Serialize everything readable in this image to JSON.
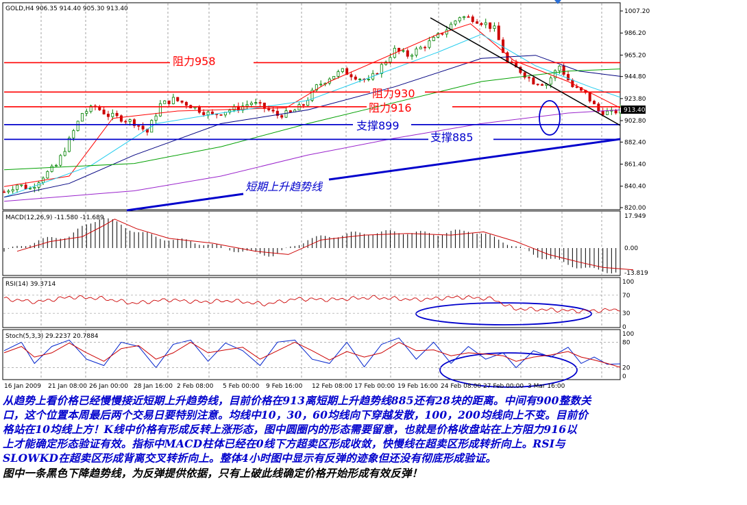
{
  "chart_data": {
    "type": "candlestick",
    "header": "GOLD,H4  906.35 914.40 905.30 913.40",
    "price_axis": {
      "ticks": [
        "1007.20",
        "986.20",
        "965.20",
        "944.80",
        "923.80",
        "902.80",
        "882.40",
        "861.40",
        "840.40",
        "820.00"
      ],
      "current": "913.40"
    },
    "x_labels": [
      "16 Jan 2009",
      "21 Jan 08:00",
      "26 Jan 00:00",
      "28 Jan 16:00",
      "2 Feb 08:00",
      "5 Feb 00:00",
      "9 Feb 16:00",
      "12 Feb 08:00",
      "17 Feb 00:00",
      "19 Feb 16:00",
      "24 Feb 08:00",
      "27 Feb 00:00",
      "3 Mar 16:00"
    ],
    "price_path": [
      [
        0,
        835
      ],
      [
        6,
        842
      ],
      [
        12,
        838
      ],
      [
        18,
        850
      ],
      [
        24,
        860
      ],
      [
        30,
        884
      ],
      [
        36,
        910
      ],
      [
        42,
        916
      ],
      [
        48,
        908
      ],
      [
        54,
        905
      ],
      [
        60,
        901
      ],
      [
        66,
        892
      ],
      [
        72,
        918
      ],
      [
        78,
        923
      ],
      [
        84,
        919
      ],
      [
        90,
        913
      ],
      [
        96,
        908
      ],
      [
        102,
        912
      ],
      [
        108,
        915
      ],
      [
        114,
        920
      ],
      [
        120,
        915
      ],
      [
        126,
        908
      ],
      [
        132,
        910
      ],
      [
        138,
        918
      ],
      [
        144,
        935
      ],
      [
        150,
        944
      ],
      [
        156,
        950
      ],
      [
        162,
        945
      ],
      [
        168,
        940
      ],
      [
        174,
        955
      ],
      [
        180,
        970
      ],
      [
        186,
        965
      ],
      [
        192,
        972
      ],
      [
        198,
        980
      ],
      [
        204,
        990
      ],
      [
        210,
        1002
      ],
      [
        216,
        1000
      ],
      [
        222,
        995
      ],
      [
        226,
        990
      ],
      [
        232,
        958
      ],
      [
        238,
        950
      ],
      [
        244,
        940
      ],
      [
        250,
        938
      ],
      [
        256,
        955
      ],
      [
        262,
        935
      ],
      [
        268,
        928
      ],
      [
        274,
        912
      ],
      [
        280,
        910
      ],
      [
        284,
        913.4
      ]
    ],
    "ma_lines": [
      {
        "color": "#ff0000",
        "points": [
          [
            0,
            840
          ],
          [
            30,
            850
          ],
          [
            50,
            905
          ],
          [
            80,
            912
          ],
          [
            130,
            915
          ],
          [
            150,
            940
          ],
          [
            200,
            985
          ],
          [
            215,
            995
          ],
          [
            235,
            960
          ],
          [
            260,
            940
          ],
          [
            284,
            915
          ]
        ]
      },
      {
        "color": "#22ccee",
        "points": [
          [
            0,
            830
          ],
          [
            40,
            860
          ],
          [
            70,
            900
          ],
          [
            100,
            910
          ],
          [
            140,
            922
          ],
          [
            170,
            945
          ],
          [
            200,
            968
          ],
          [
            220,
            985
          ],
          [
            245,
            955
          ],
          [
            270,
            935
          ],
          [
            284,
            925
          ]
        ]
      },
      {
        "color": "#000080",
        "points": [
          [
            0,
            830
          ],
          [
            30,
            843
          ],
          [
            60,
            870
          ],
          [
            100,
            900
          ],
          [
            140,
            913
          ],
          [
            180,
            935
          ],
          [
            220,
            962
          ],
          [
            245,
            965
          ],
          [
            265,
            950
          ],
          [
            284,
            945
          ]
        ]
      },
      {
        "color": "#00a000",
        "points": [
          [
            0,
            856
          ],
          [
            60,
            862
          ],
          [
            100,
            878
          ],
          [
            140,
            900
          ],
          [
            180,
            920
          ],
          [
            220,
            940
          ],
          [
            260,
            950
          ],
          [
            284,
            952
          ]
        ]
      },
      {
        "color": "#9922cc",
        "points": [
          [
            0,
            826
          ],
          [
            60,
            836
          ],
          [
            100,
            850
          ],
          [
            140,
            870
          ],
          [
            180,
            886
          ],
          [
            220,
            900
          ],
          [
            260,
            910
          ],
          [
            284,
            913
          ]
        ]
      }
    ],
    "levels": [
      {
        "label": "阻力958",
        "value": 958
      },
      {
        "label": "阻力930",
        "value": 930
      },
      {
        "label": "阻力916",
        "value": 916
      },
      {
        "label": "支撑899",
        "value": 899
      },
      {
        "label": "支撑885",
        "value": 885
      }
    ],
    "trend_up_label": "短期上升趋势线",
    "macd": {
      "label": "MACD(12,26,9) -11.580 -11.689",
      "ticks": [
        "17.949",
        "0.00",
        "-13.819"
      ],
      "values": [
        [
          0,
          -2
        ],
        [
          15,
          4
        ],
        [
          30,
          7
        ],
        [
          40,
          14
        ],
        [
          45,
          17.9
        ],
        [
          55,
          12
        ],
        [
          70,
          6
        ],
        [
          90,
          3
        ],
        [
          110,
          -2
        ],
        [
          125,
          -4
        ],
        [
          140,
          5
        ],
        [
          160,
          8
        ],
        [
          180,
          9
        ],
        [
          200,
          8
        ],
        [
          215,
          10
        ],
        [
          230,
          4
        ],
        [
          245,
          -4
        ],
        [
          260,
          -9
        ],
        [
          270,
          -12
        ],
        [
          284,
          -13.5
        ]
      ]
    },
    "rsi": {
      "label": "RSI(14) 39.3714",
      "ticks": [
        "100",
        "70",
        "30",
        "0"
      ],
      "values": [
        [
          0,
          62
        ],
        [
          15,
          55
        ],
        [
          30,
          66
        ],
        [
          45,
          63
        ],
        [
          60,
          52
        ],
        [
          75,
          60
        ],
        [
          90,
          55
        ],
        [
          105,
          58
        ],
        [
          120,
          50
        ],
        [
          135,
          62
        ],
        [
          150,
          60
        ],
        [
          170,
          65
        ],
        [
          190,
          60
        ],
        [
          210,
          66
        ],
        [
          225,
          62
        ],
        [
          235,
          40
        ],
        [
          250,
          38
        ],
        [
          265,
          35
        ],
        [
          275,
          36
        ],
        [
          284,
          39
        ]
      ]
    },
    "stoch": {
      "label": "Stoch(5,3,3) 29.2237 20.7884",
      "ticks": [
        "100",
        "80",
        "20",
        "0"
      ],
      "k": [
        [
          0,
          60
        ],
        [
          8,
          80
        ],
        [
          14,
          30
        ],
        [
          22,
          70
        ],
        [
          30,
          85
        ],
        [
          38,
          40
        ],
        [
          46,
          25
        ],
        [
          54,
          80
        ],
        [
          62,
          70
        ],
        [
          70,
          20
        ],
        [
          78,
          75
        ],
        [
          86,
          85
        ],
        [
          94,
          35
        ],
        [
          102,
          78
        ],
        [
          110,
          60
        ],
        [
          118,
          25
        ],
        [
          126,
          80
        ],
        [
          134,
          85
        ],
        [
          142,
          40
        ],
        [
          150,
          30
        ],
        [
          158,
          80
        ],
        [
          166,
          22
        ],
        [
          174,
          75
        ],
        [
          182,
          90
        ],
        [
          190,
          40
        ],
        [
          198,
          80
        ],
        [
          206,
          30
        ],
        [
          214,
          70
        ],
        [
          222,
          40
        ],
        [
          230,
          55
        ],
        [
          236,
          20
        ],
        [
          244,
          60
        ],
        [
          252,
          45
        ],
        [
          260,
          68
        ],
        [
          266,
          30
        ],
        [
          272,
          45
        ],
        [
          278,
          28
        ],
        [
          284,
          29
        ]
      ],
      "d": [
        [
          0,
          55
        ],
        [
          8,
          70
        ],
        [
          14,
          45
        ],
        [
          22,
          55
        ],
        [
          30,
          78
        ],
        [
          38,
          55
        ],
        [
          46,
          35
        ],
        [
          54,
          65
        ],
        [
          62,
          72
        ],
        [
          70,
          40
        ],
        [
          78,
          55
        ],
        [
          86,
          80
        ],
        [
          94,
          55
        ],
        [
          102,
          62
        ],
        [
          110,
          68
        ],
        [
          118,
          40
        ],
        [
          126,
          60
        ],
        [
          134,
          80
        ],
        [
          142,
          60
        ],
        [
          150,
          38
        ],
        [
          158,
          58
        ],
        [
          166,
          45
        ],
        [
          174,
          55
        ],
        [
          182,
          80
        ],
        [
          190,
          60
        ],
        [
          198,
          62
        ],
        [
          206,
          48
        ],
        [
          214,
          55
        ],
        [
          222,
          52
        ],
        [
          230,
          48
        ],
        [
          236,
          35
        ],
        [
          244,
          45
        ],
        [
          252,
          50
        ],
        [
          260,
          58
        ],
        [
          266,
          45
        ],
        [
          272,
          38
        ],
        [
          278,
          30
        ],
        [
          284,
          21
        ]
      ]
    }
  },
  "commentary": {
    "lines": [
      "从趋势上看价格已经慢慢接近短期上升趋势线，目前价格在913离短期上升趋势线885还有28块的距离。中间有900整数关",
      "口，这个位置本周最后两个交易日要特别注意。均线中10，30，60均线向下穿越发散，100，200均线向上不变。目前价",
      "格站在10均线上方！K线中价格有形成反转上涨形态，图中圆圈内的形态需要留意，也就是价格收盘站在上方阻力916以",
      "上才能确定形态验证有效。指标中MACD柱体已经在0线下方超卖区形成收敛，快慢线在超卖区形成转折向上。RSI与",
      "SLOWKD在超卖区形成背离交叉转折向上。整体4小时图中显示有反弹的迹象但还没有彻底形成验证。",
      "图中一条黑色下降趋势线，为反弹提供依据，只有上破此线确定价格开始形成有效反弹！"
    ]
  }
}
